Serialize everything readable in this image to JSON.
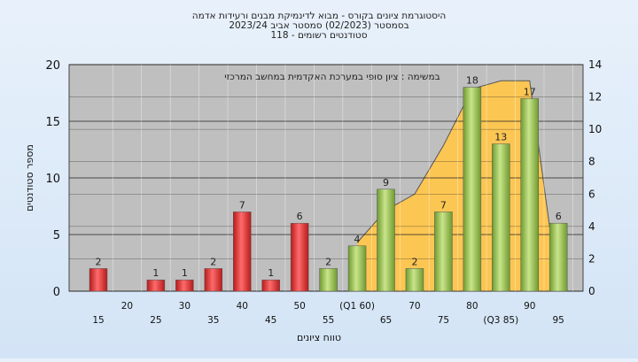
{
  "chart_data": {
    "type": "bar",
    "title_lines": [
      "היסטוגרמת ציונים בקורס - מבוא לדינמיקת מבנים ורעידות אדמה",
      "בסמסטר  (02/2023)  סמסטר אביב 2023/24",
      "סטודנטים רשומים - 118"
    ],
    "annotation": "במשימה : ציון סופי במערכת האקדמית במחשב המרכזי",
    "xlabel": "טווח ציונים",
    "ylabel": "מספר סטודנטים",
    "ylim": [
      0,
      20
    ],
    "y2lim": [
      0,
      14
    ],
    "yticks": [
      0,
      5,
      10,
      15,
      20
    ],
    "y2ticks": [
      0,
      2,
      4,
      6,
      8,
      10,
      12,
      14
    ],
    "categories": [
      "15",
      "20",
      "25",
      "30",
      "35",
      "40",
      "45",
      "50",
      "55",
      "(Q1 60)",
      "65",
      "70",
      "75",
      "80",
      "(Q3 85)",
      "90",
      "95"
    ],
    "values": [
      2,
      0,
      1,
      1,
      2,
      7,
      1,
      6,
      2,
      4,
      9,
      2,
      7,
      18,
      13,
      17,
      6
    ],
    "fail_threshold": 55,
    "band": {
      "type": "area",
      "lower_right_axis": [
        0,
        0,
        0,
        0,
        0,
        0,
        0,
        0,
        0,
        3,
        5,
        6,
        9,
        12,
        13,
        13,
        0
      ],
      "upper_right_axis": [
        0,
        0,
        0,
        0,
        0,
        0,
        0,
        0,
        0,
        3,
        5,
        6,
        9,
        12.5,
        13,
        13,
        0
      ]
    },
    "grid": true,
    "colors": {
      "fail_bar": "#d93030",
      "pass_bar": "#8fc24a",
      "band": "#ffc64d",
      "plot_bg": "#bfbfbf",
      "grid": "#222222"
    }
  }
}
